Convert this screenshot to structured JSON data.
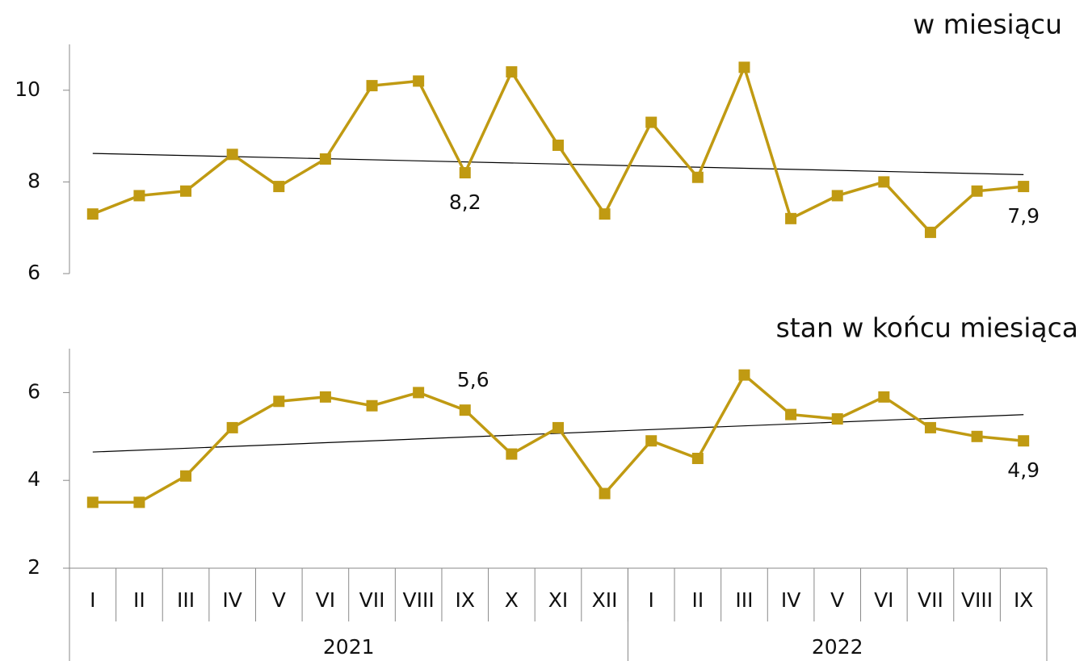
{
  "chart_data": [
    {
      "type": "line",
      "title": "w miesiącu",
      "color": "#c09a12",
      "trendline": true,
      "values": [
        7.3,
        7.7,
        7.8,
        8.6,
        7.9,
        8.5,
        10.1,
        10.2,
        8.2,
        10.4,
        8.8,
        7.3,
        9.3,
        8.1,
        10.5,
        7.2,
        7.7,
        8.0,
        6.9,
        7.8,
        7.9
      ],
      "value_labels": [
        null,
        null,
        null,
        null,
        null,
        null,
        null,
        null,
        "8,2",
        null,
        null,
        null,
        null,
        null,
        null,
        null,
        null,
        null,
        null,
        null,
        "7,9"
      ],
      "ylim": [
        6,
        11
      ],
      "yticks": [
        6,
        8,
        10
      ]
    },
    {
      "type": "line",
      "title": "stan w końcu miesiąca",
      "color": "#c09a12",
      "trendline": true,
      "values": [
        3.5,
        3.5,
        4.1,
        5.2,
        5.8,
        5.9,
        5.7,
        6.0,
        5.6,
        4.6,
        5.2,
        3.7,
        4.9,
        4.5,
        6.4,
        5.5,
        5.4,
        5.9,
        5.2,
        5.0,
        4.9
      ],
      "value_labels": [
        null,
        null,
        null,
        null,
        null,
        null,
        null,
        null,
        "5,6",
        null,
        null,
        null,
        null,
        null,
        null,
        null,
        null,
        null,
        null,
        null,
        "4,9"
      ],
      "ylim": [
        2,
        7
      ],
      "yticks": [
        2,
        4,
        6
      ]
    }
  ],
  "x_axis": {
    "categories": [
      "I",
      "II",
      "III",
      "IV",
      "V",
      "VI",
      "VII",
      "VIII",
      "IX",
      "X",
      "XI",
      "XII",
      "I",
      "II",
      "III",
      "IV",
      "V",
      "VI",
      "VII",
      "VIII",
      "IX"
    ],
    "groups": [
      {
        "label": "2021",
        "count": 12
      },
      {
        "label": "2022",
        "count": 9
      }
    ]
  }
}
